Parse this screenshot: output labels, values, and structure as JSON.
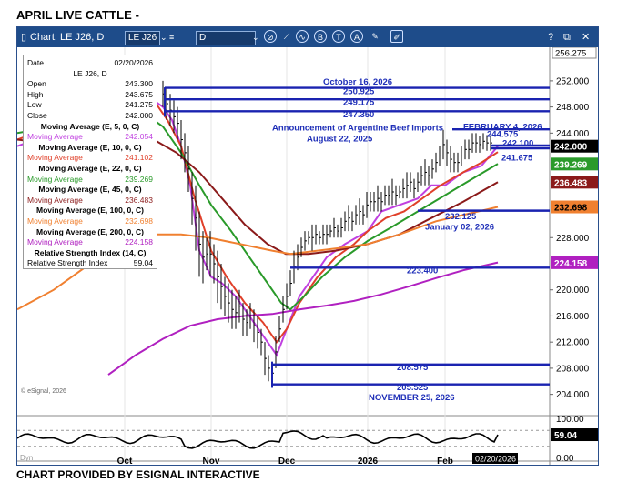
{
  "page_title": "APRIL LIVE CATTLE  -",
  "footer_credit": "CHART PROVIDED BY ESIGNAL INTERACTIVE",
  "toolbar": {
    "chart_label": "Chart: LE J26, D",
    "symbol": "LE J26",
    "interval": "D",
    "help": "?",
    "close": "✕"
  },
  "info_box": {
    "date_label": "Date",
    "date_value": "02/20/2026",
    "symbol": "LE J26, D",
    "ohlc": [
      {
        "label": "Open",
        "value": "243.300"
      },
      {
        "label": "High",
        "value": "243.675"
      },
      {
        "label": "Low",
        "value": "241.275"
      },
      {
        "label": "Close",
        "value": "242.000"
      }
    ],
    "moving_averages": [
      {
        "title": "Moving Average (E, 5, 0, C)",
        "label": "Moving Average",
        "value": "242.054",
        "color": "#c040e0"
      },
      {
        "title": "Moving Average (E, 10, 0, C)",
        "label": "Moving Average",
        "value": "241.102",
        "color": "#e0402a"
      },
      {
        "title": "Moving Average (E, 22, 0, C)",
        "label": "Moving Average",
        "value": "239.269",
        "color": "#2a9a2a"
      },
      {
        "title": "Moving Average (E, 45, 0, C)",
        "label": "Moving Average",
        "value": "236.483",
        "color": "#8b1a1a"
      },
      {
        "title": "Moving Average (E, 100, 0, C)",
        "label": "Moving Average",
        "value": "232.698",
        "color": "#f08030"
      },
      {
        "title": "Moving Average (E, 200, 0, C)",
        "label": "Moving Average",
        "value": "224.158",
        "color": "#b020c0"
      }
    ],
    "rsi_title": "Relative Strength Index (14, C)",
    "rsi_label": "Relative Strength Index",
    "rsi_value": "59.04"
  },
  "watermark": "© eSignal, 2026",
  "dyn_label": "Dyn",
  "date_tag": "02/20/2026",
  "price_axis": {
    "top_tag": "256.275",
    "ticks": [
      "252.000",
      "248.000",
      "244.000",
      "228.000",
      "220.000",
      "216.000",
      "212.000",
      "208.000",
      "204.000"
    ],
    "rsi_ticks": [
      "100.00",
      "0.00"
    ]
  },
  "price_tags": [
    {
      "name": "close-price-tag",
      "text": "242.000",
      "bg": "#000000",
      "fg": "#ffffff"
    },
    {
      "name": "ma22-price-tag",
      "text": "239.269",
      "bg": "#2a9a2a",
      "fg": "#ffffff"
    },
    {
      "name": "ma45-price-tag",
      "text": "236.483",
      "bg": "#8b1a1a",
      "fg": "#ffffff"
    },
    {
      "name": "ma100-price-tag",
      "text": "232.698",
      "bg": "#f08030",
      "fg": "#000000"
    },
    {
      "name": "ma200-price-tag",
      "text": "224.158",
      "bg": "#b020c0",
      "fg": "#ffffff"
    },
    {
      "name": "rsi-value-tag",
      "text": "59.04",
      "bg": "#000000",
      "fg": "#ffffff"
    }
  ],
  "annotations": {
    "oct16": "October 16, 2026",
    "lvl250": "250.925",
    "lvl249": "249.175",
    "lvl247": "247.350",
    "argentine": "Announcement of Argentine Beef imports",
    "aug22": "August 22, 2025",
    "feb4": "FEBRUARY 4, 2026",
    "lvl244": "244.575",
    "lvl242": "242.100",
    "lvl241": "241.675",
    "lvl232": "232.125",
    "jan02": "January 02, 2026",
    "lvl223": "223.400",
    "lvl208": "208.575",
    "lvl205": "205.525",
    "nov25": "NOVEMBER 25, 2026"
  },
  "x_axis": {
    "months": [
      "Oct",
      "Nov",
      "Dec",
      "2026",
      "Feb"
    ]
  },
  "chart_data": {
    "type": "line",
    "title": "APRIL LIVE CATTLE",
    "ylim": [
      202,
      256.3
    ],
    "last_bar": {
      "date": "02/20/2026",
      "open": 243.3,
      "high": 243.675,
      "low": 241.275,
      "close": 242.0
    },
    "horizontal_levels": [
      250.925,
      249.175,
      247.35,
      244.575,
      242.1,
      241.675,
      232.125,
      223.4,
      208.575,
      205.525
    ],
    "series": [
      {
        "name": "Moving Average (E, 5, 0, C)",
        "color": "#c040e0",
        "x": [
          "Oct",
          "Nov",
          "Dec",
          "2026",
          "Feb",
          "02/20/2026"
        ],
        "values": [
          248.5,
          223,
          216,
          231,
          238,
          242.054
        ]
      },
      {
        "name": "Moving Average (E, 10, 0, C)",
        "color": "#e0402a",
        "x": [
          "Oct",
          "Nov",
          "Dec",
          "2026",
          "Feb",
          "02/20/2026"
        ],
        "values": [
          247.5,
          226,
          216.5,
          230.5,
          237,
          241.102
        ]
      },
      {
        "name": "Moving Average (E, 22, 0, C)",
        "color": "#2a9a2a",
        "x": [
          "Oct",
          "Nov",
          "Dec",
          "2026",
          "Feb",
          "02/20/2026"
        ],
        "values": [
          245,
          229,
          217,
          229,
          235,
          239.269
        ]
      },
      {
        "name": "Moving Average (E, 45, 0, C)",
        "color": "#8b1a1a",
        "x": [
          "Oct",
          "Nov",
          "Dec",
          "2026",
          "Feb",
          "02/20/2026"
        ],
        "values": [
          241,
          234,
          225,
          227.5,
          232,
          236.483
        ]
      },
      {
        "name": "Moving Average (E, 100, 0, C)",
        "color": "#f08030",
        "x": [
          "Oct",
          "Nov",
          "Dec",
          "2026",
          "Feb",
          "02/20/2026"
        ],
        "values": [
          228,
          228,
          226,
          227,
          230,
          232.698
        ]
      },
      {
        "name": "Moving Average (E, 200, 0, C)",
        "color": "#b020c0",
        "x": [
          "Oct",
          "Nov",
          "Dec",
          "2026",
          "Feb",
          "02/20/2026"
        ],
        "values": [
          212,
          216,
          216.5,
          218.5,
          221.5,
          224.158
        ]
      }
    ],
    "rsi": {
      "name": "Relative Strength Index (14, C)",
      "last": 59.04,
      "ylim": [
        0,
        100
      ]
    }
  }
}
